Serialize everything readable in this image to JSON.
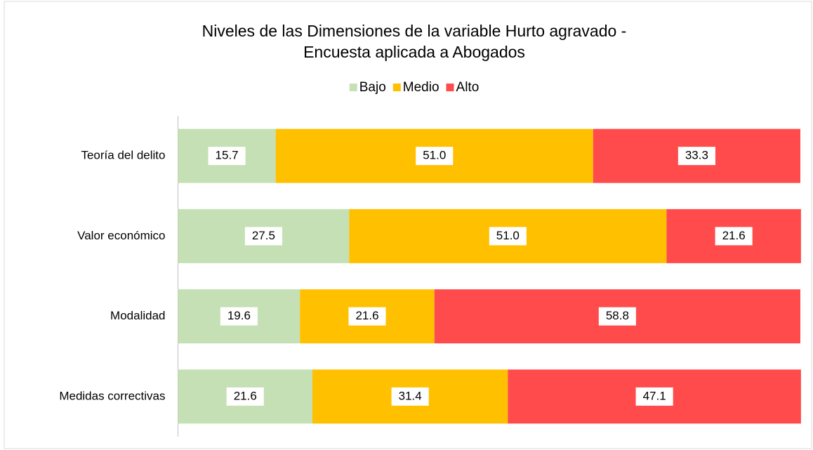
{
  "chart_data": {
    "type": "stacked_bar_horizontal",
    "title": [
      "Niveles de las Dimensiones de la variable Hurto agravado -",
      "Encuesta aplicada a Abogados"
    ],
    "categories": [
      "Teoría del delito",
      "Valor económico",
      "Modalidad",
      "Medidas correctivas"
    ],
    "series": [
      {
        "name": "Bajo",
        "color": "#c5e0b4",
        "values": [
          15.7,
          27.5,
          19.6,
          21.6
        ],
        "value_labels": [
          "15.7",
          "27.5",
          "19.6",
          "21.6"
        ]
      },
      {
        "name": "Medio",
        "color": "#ffc000",
        "values": [
          51,
          51,
          21.6,
          31.4
        ],
        "value_labels": [
          "51.0",
          "51.0",
          "21.6",
          "31.4"
        ]
      },
      {
        "name": "Alto",
        "color": "#ff4b4b",
        "values": [
          33.3,
          21.6,
          58.8,
          47.1
        ],
        "value_labels": [
          "33.3",
          "21.6",
          "58.8",
          "47.1"
        ]
      }
    ],
    "xlim": [
      0,
      100
    ],
    "legend": "top"
  }
}
